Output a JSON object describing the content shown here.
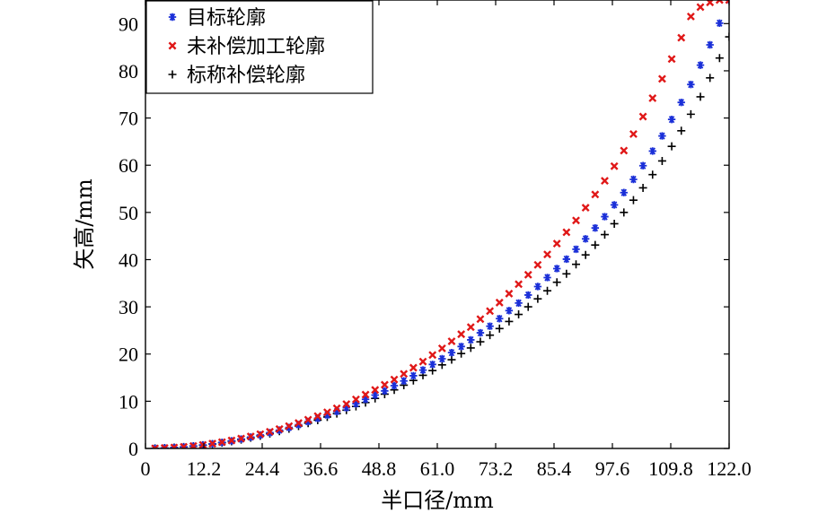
{
  "chart_data": {
    "type": "scatter",
    "xlabel": "半口径/mm",
    "ylabel": "矢高/mm",
    "xlim": [
      0,
      122.0
    ],
    "ylim": [
      0,
      95
    ],
    "xticks": [
      "0",
      "12.2",
      "24.4",
      "36.6",
      "48.8",
      "61.0",
      "73.2",
      "85.4",
      "97.6",
      "109.8",
      "122.0"
    ],
    "yticks": [
      "0",
      "10",
      "20",
      "30",
      "40",
      "50",
      "60",
      "70",
      "80",
      "90"
    ],
    "legend_position": "top-left",
    "x": [
      2,
      4,
      6,
      8,
      10,
      12,
      14,
      16,
      18,
      20,
      22,
      24,
      26,
      28,
      30,
      32,
      34,
      36,
      38,
      40,
      42,
      44,
      46,
      48,
      50,
      52,
      54,
      56,
      58,
      60,
      62,
      64,
      66,
      68,
      70,
      72,
      74,
      76,
      78,
      80,
      82,
      84,
      86,
      88,
      90,
      92,
      94,
      96,
      98,
      100,
      102,
      104,
      106,
      108,
      110,
      112,
      114,
      116,
      118,
      120,
      122
    ],
    "series": [
      {
        "name": "目标轮廓",
        "marker": "asterisk",
        "color": "#1a2fd8",
        "values": [
          0.02,
          0.1,
          0.19,
          0.33,
          0.51,
          0.72,
          0.98,
          1.27,
          1.61,
          1.98,
          2.4,
          2.84,
          3.34,
          3.87,
          4.43,
          5.04,
          5.68,
          6.37,
          7.07,
          7.83,
          8.63,
          9.47,
          10.4,
          11.3,
          12.2,
          13.3,
          14.3,
          15.4,
          16.6,
          17.8,
          19.0,
          20.3,
          21.6,
          23.0,
          24.5,
          25.9,
          27.5,
          29.2,
          30.8,
          32.5,
          34.3,
          36.2,
          38.1,
          40.1,
          42.2,
          44.4,
          46.7,
          49.1,
          51.6,
          54.2,
          57.0,
          59.9,
          63.0,
          66.2,
          69.7,
          73.3,
          77.1,
          81.2,
          85.5,
          90.1,
          95.0
        ]
      },
      {
        "name": "未补偿加工轮廓",
        "marker": "x",
        "color": "#e01818",
        "values": [
          0.02,
          0.1,
          0.2,
          0.34,
          0.52,
          0.75,
          1.02,
          1.33,
          1.69,
          2.1,
          2.55,
          3.03,
          3.55,
          4.12,
          4.74,
          5.39,
          6.1,
          6.86,
          7.66,
          8.51,
          9.4,
          10.4,
          11.4,
          12.4,
          13.5,
          14.6,
          15.8,
          17.1,
          18.4,
          19.8,
          21.2,
          22.7,
          24.2,
          25.7,
          27.4,
          29.1,
          30.9,
          32.8,
          34.8,
          36.8,
          38.9,
          41.1,
          43.4,
          45.8,
          48.3,
          51.0,
          53.8,
          56.7,
          59.8,
          63.1,
          66.6,
          70.3,
          74.2,
          78.3,
          82.5,
          87.0,
          91.5,
          93.5,
          94.5,
          95.0,
          95.0
        ]
      },
      {
        "name": "标称补偿轮廓",
        "marker": "plus",
        "color": "#000000",
        "values": [
          0.02,
          0.09,
          0.18,
          0.31,
          0.48,
          0.68,
          0.93,
          1.21,
          1.53,
          1.88,
          2.27,
          2.69,
          3.15,
          3.65,
          4.18,
          4.75,
          5.36,
          5.99,
          6.67,
          7.38,
          8.12,
          8.9,
          9.72,
          10.6,
          11.5,
          12.4,
          13.4,
          14.4,
          15.5,
          16.5,
          17.7,
          18.8,
          20.1,
          21.3,
          22.6,
          24.0,
          25.4,
          26.9,
          28.4,
          30.0,
          31.7,
          33.4,
          35.2,
          37.0,
          39.0,
          41.0,
          43.1,
          45.3,
          47.6,
          50.0,
          52.6,
          55.2,
          58.0,
          60.9,
          64.0,
          67.3,
          70.8,
          74.5,
          78.5,
          82.7,
          87.2
        ]
      }
    ]
  }
}
